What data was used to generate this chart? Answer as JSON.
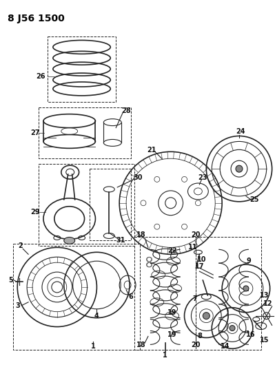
{
  "title": "8 J56 1500",
  "bg_color": "#ffffff",
  "fig_width": 3.99,
  "fig_height": 5.33,
  "dpi": 100,
  "line_color": "#222222",
  "label_fontsize": 6.5,
  "title_fontsize": 10
}
